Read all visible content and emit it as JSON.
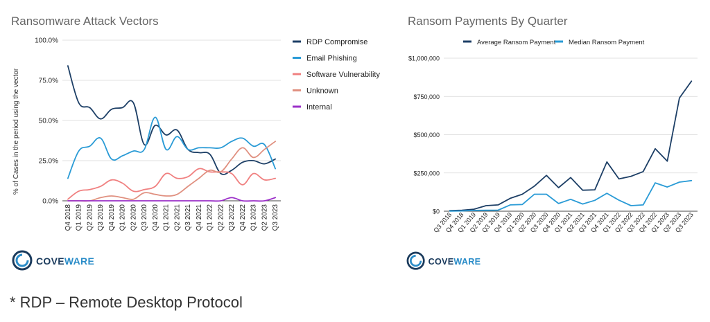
{
  "footnote": "* RDP – Remote Desktop Protocol",
  "logo": {
    "text_a": "COVE",
    "text_b": "WARE",
    "color_dark": "#1a3a5c",
    "color_light": "#2a8cc8"
  },
  "chart_data": [
    {
      "type": "line",
      "title": "Ransomware Attack Vectors",
      "ylabel": "% of Cases in the period using the vector",
      "xlabel": "",
      "ylim": [
        0,
        100
      ],
      "yticks": [
        "0.0%",
        "25.0%",
        "50.0%",
        "75.0%",
        "100.0%"
      ],
      "ytick_values": [
        0,
        25,
        50,
        75,
        100
      ],
      "legend_position": "right",
      "categories": [
        "Q4 2018",
        "Q1 2019",
        "Q2 2019",
        "Q3 2019",
        "Q4 2019",
        "Q1 2020",
        "Q2 2020",
        "Q3 2020",
        "Q4 2020",
        "Q1 2021",
        "Q2 2021",
        "Q3 2021",
        "Q4 2021",
        "Q1 2022",
        "Q2 2022",
        "Q3 2022",
        "Q4 2022",
        "Q1 2023",
        "Q2 2023",
        "Q3 2023"
      ],
      "series": [
        {
          "name": "RDP Compromise",
          "color": "#1d3f66",
          "values": [
            84,
            61,
            58,
            51,
            57,
            58,
            61,
            35,
            47,
            41,
            44,
            32,
            30,
            29,
            17,
            19,
            24,
            25,
            23,
            26
          ]
        },
        {
          "name": "Email Phishing",
          "color": "#2a9bd6",
          "values": [
            14,
            31,
            34,
            39,
            26,
            28,
            31,
            32,
            52,
            32,
            40,
            32,
            33,
            33,
            33,
            37,
            39,
            34,
            35,
            20
          ]
        },
        {
          "name": "Software Vulnerability",
          "color": "#f08080",
          "values": [
            1,
            6,
            7,
            9,
            13,
            11,
            6,
            7,
            9,
            17,
            14,
            15,
            20,
            18,
            18,
            17,
            10,
            17,
            13,
            14
          ]
        },
        {
          "name": "Unknown",
          "color": "#e09080",
          "values": [
            0,
            0,
            0,
            2,
            3,
            2,
            1,
            5,
            4,
            3,
            4,
            9,
            14,
            19,
            18,
            26,
            33,
            27,
            32,
            37
          ]
        },
        {
          "name": "Internal",
          "color": "#9b30c8",
          "values": [
            0,
            0,
            0,
            0,
            0,
            0,
            0,
            0,
            0,
            0,
            0,
            0,
            0,
            0,
            0,
            2,
            0,
            0,
            0,
            2
          ]
        }
      ]
    },
    {
      "type": "line",
      "title": "Ransom Payments By Quarter",
      "xlabel": "",
      "ylabel": "",
      "ylim": [
        0,
        1000000
      ],
      "yticks": [
        "$0",
        "$250,000",
        "$500,000",
        "$750,000",
        "$1,000,000"
      ],
      "ytick_values": [
        0,
        250000,
        500000,
        750000,
        1000000
      ],
      "legend_position": "top",
      "categories": [
        "Q3 2018",
        "Q4 2018",
        "Q1 2019",
        "Q2 2019",
        "Q3 2019",
        "Q4 2019",
        "Q1 2020",
        "Q2 2020",
        "Q3 2020",
        "Q4 2020",
        "Q1 2021",
        "Q2 2021",
        "Q3 2021",
        "Q4 2021",
        "Q1 2022",
        "Q2 2022",
        "Q3 2022",
        "Q4 2022",
        "Q1 2023",
        "Q2 2023",
        "Q3 2023"
      ],
      "series": [
        {
          "name": "Average Ransom Payment",
          "color": "#1d3f66",
          "values": [
            4000,
            6000,
            13000,
            36000,
            41000,
            84000,
            111000,
            164000,
            234000,
            154000,
            220000,
            137000,
            140000,
            322000,
            211000,
            228000,
            259000,
            408000,
            327000,
            740000,
            850000
          ]
        },
        {
          "name": "Median Ransom Payment",
          "color": "#2a9bd6",
          "values": [
            1000,
            2000,
            5000,
            6000,
            7000,
            41000,
            44000,
            111000,
            111000,
            50000,
            78000,
            47000,
            71000,
            117000,
            72000,
            36000,
            41000,
            185000,
            158000,
            190000,
            200000
          ]
        }
      ]
    }
  ]
}
